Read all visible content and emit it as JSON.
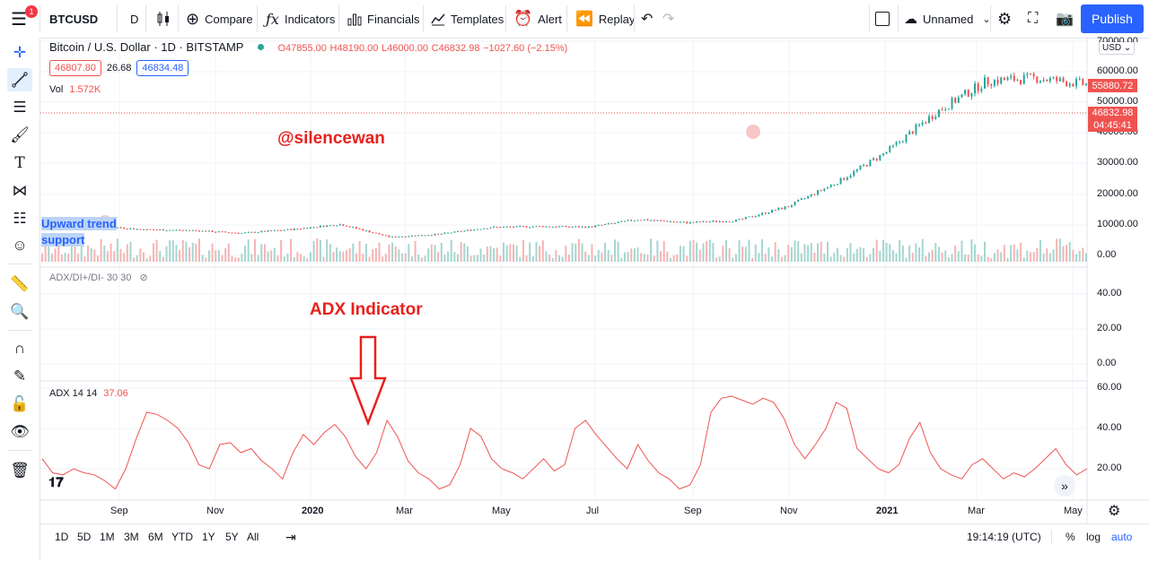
{
  "topbar": {
    "symbol": "BTCUSD",
    "notification_count": "1",
    "interval": "D",
    "compare_label": "Compare",
    "indicators_label": "Indicators",
    "financials_label": "Financials",
    "templates_label": "Templates",
    "alert_label": "Alert",
    "replay_label": "Replay",
    "layout_name": "Unnamed",
    "publish_label": "Publish"
  },
  "legend": {
    "title": "Bitcoin / U.S. Dollar · 1D · BITSTAMP",
    "open": "O47855.00",
    "high": "H48190.00",
    "low": "L46000.00",
    "close": "C46832.98",
    "change": "−1027.60 (−2.15%)",
    "bid": "46807.80",
    "spread": "26.68",
    "ask": "46834.48",
    "vol_label": "Vol",
    "vol_value": "1.572K"
  },
  "annotations": {
    "watermark": "@silencewan",
    "trend_text": "Upward trend support",
    "adx_title": "ADX Indicator"
  },
  "panes": {
    "dmi_label": "ADX/DI+/DI- 30 30",
    "adx_label": "ADX 14 14",
    "adx_value": "37.06"
  },
  "price_axis": {
    "currency": "USD",
    "labels": [
      "70000.00",
      "60000.00",
      "50000.00",
      "40000.00",
      "30000.00",
      "20000.00",
      "10000.00",
      "0.00"
    ],
    "last_price_tag": "55880.72",
    "cross_price_tag": "46832.98",
    "countdown": "04:45:41",
    "dmi_labels": [
      "40.00",
      "20.00",
      "0.00"
    ],
    "adx_labels": [
      "60.00",
      "40.00",
      "20.00"
    ]
  },
  "time_axis": {
    "labels": [
      "Sep",
      "Nov",
      "2020",
      "Mar",
      "May",
      "Jul",
      "Sep",
      "Nov",
      "2021",
      "Mar",
      "May"
    ]
  },
  "bottombar": {
    "ranges": [
      "1D",
      "5D",
      "1M",
      "3M",
      "6M",
      "YTD",
      "1Y",
      "5Y",
      "All"
    ],
    "clock": "19:14:19 (UTC)",
    "percent": "%",
    "log": "log",
    "auto": "auto"
  },
  "colors": {
    "up": "#26a69a",
    "down": "#ef5350",
    "accent": "#2962ff",
    "annotation_red": "#e8211d"
  },
  "chart_data": [
    {
      "type": "line",
      "title": "Bitcoin / U.S. Dollar · 1D · BITSTAMP",
      "series": [
        {
          "name": "BTCUSD",
          "x": [
            "2019-08",
            "2019-09",
            "2019-10",
            "2019-11",
            "2019-12",
            "2020-01",
            "2020-02",
            "2020-03",
            "2020-04",
            "2020-05",
            "2020-06",
            "2020-07",
            "2020-08",
            "2020-09",
            "2020-10",
            "2020-11",
            "2020-12",
            "2021-01",
            "2021-02",
            "2021-03",
            "2021-04",
            "2021-05"
          ],
          "values": [
            10500,
            9800,
            8500,
            8200,
            7300,
            8500,
            10200,
            6000,
            7000,
            9200,
            9500,
            9300,
            11800,
            10700,
            11500,
            16000,
            24000,
            34000,
            47000,
            57000,
            58000,
            55880
          ]
        }
      ],
      "ylim": [
        0,
        70000
      ]
    },
    {
      "type": "line",
      "title": "ADX 14 14",
      "series": [
        {
          "name": "ADX",
          "values": [
            25,
            18,
            17,
            20,
            18,
            17,
            14,
            10,
            20,
            35,
            48,
            47,
            44,
            40,
            33,
            22,
            20,
            32,
            33,
            28,
            30,
            24,
            20,
            15,
            28,
            37,
            32,
            38,
            42,
            36,
            26,
            20,
            28,
            44,
            36,
            24,
            18,
            15,
            10,
            12,
            22,
            40,
            36,
            25,
            20,
            18,
            15,
            20,
            25,
            19,
            22,
            40,
            44,
            37,
            31,
            25,
            20,
            32,
            24,
            18,
            15,
            10,
            12,
            22,
            48,
            55,
            56,
            54,
            52,
            55,
            53,
            45,
            32,
            25,
            32,
            40,
            53,
            50,
            30,
            25,
            20,
            18,
            22,
            35,
            43,
            28,
            20,
            17,
            15,
            22,
            25,
            20,
            15,
            18,
            16,
            20,
            25,
            30,
            22,
            17,
            20
          ]
        }
      ],
      "ylim": [
        0,
        65
      ]
    }
  ]
}
